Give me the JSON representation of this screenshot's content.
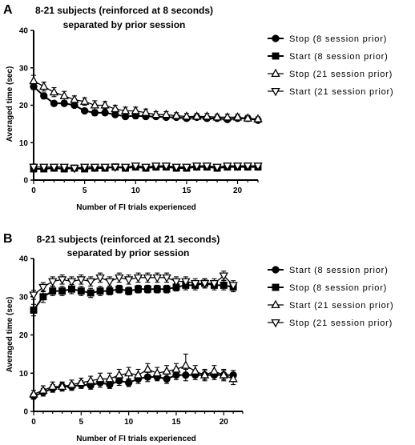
{
  "chart_data": [
    {
      "panel": "A",
      "type": "line",
      "title_lines": [
        "8-21 subjects (reinforced at 8 seconds)",
        "separated by prior session"
      ],
      "xlabel": "Number of FI trials experienced",
      "ylabel": "Averaged time (sec)",
      "xlim": [
        0,
        22
      ],
      "ylim": [
        0,
        40
      ],
      "xticks": [
        0,
        5,
        10,
        15,
        20
      ],
      "yticks": [
        0,
        10,
        20,
        30,
        40
      ],
      "grid": false,
      "legend_position": "right",
      "x": [
        0,
        1,
        2,
        3,
        4,
        5,
        6,
        7,
        8,
        9,
        10,
        11,
        12,
        13,
        14,
        15,
        16,
        17,
        18,
        19,
        20,
        21,
        22
      ],
      "series": [
        {
          "name": "Stop (8 session prior)",
          "marker": "circle",
          "filled": true,
          "values": [
            25,
            22.5,
            20.5,
            20.5,
            20,
            18.5,
            18,
            18,
            17.5,
            17,
            17.2,
            17,
            17,
            16.8,
            16.8,
            16.5,
            16.8,
            16.5,
            16.5,
            16.2,
            16.5,
            16.5,
            16
          ],
          "errors": [
            0.8,
            0.8,
            0.6,
            0.6,
            0.6,
            0.6,
            0.8,
            0.6,
            0.6,
            0.6,
            0.8,
            0.6,
            0.6,
            0.5,
            0.5,
            0.6,
            0.6,
            0.6,
            0.6,
            0.6,
            0.6,
            0.6,
            0.5
          ]
        },
        {
          "name": "Start (8 session prior)",
          "marker": "square",
          "filled": true,
          "values": [
            3,
            3,
            3.2,
            3,
            3.2,
            3,
            3.2,
            3.2,
            3.5,
            3.2,
            3.5,
            3.2,
            3.5,
            3.5,
            3.2,
            3.2,
            3.5,
            3.5,
            3.2,
            3.5,
            3.5,
            3.5,
            3.5
          ],
          "errors": [
            0.6,
            0.6,
            0.8,
            0.6,
            0.6,
            0.5,
            0.6,
            0.6,
            0.5,
            0.5,
            0.6,
            0.5,
            0.6,
            0.6,
            0.5,
            0.5,
            0.6,
            0.6,
            0.5,
            0.5,
            0.6,
            0.6,
            0.5
          ]
        },
        {
          "name": "Stop (21 session prior)",
          "marker": "triangle-up",
          "filled": false,
          "values": [
            26.5,
            25,
            23.5,
            22.5,
            21.5,
            21,
            20,
            20,
            19,
            18.5,
            18.5,
            18,
            17.5,
            17.5,
            17.2,
            17,
            17,
            17,
            16.8,
            16.8,
            16.8,
            16.5,
            16.3
          ],
          "errors": [
            1.5,
            1.2,
            1.2,
            1.2,
            1.0,
            1.0,
            1.2,
            1.0,
            1.0,
            1.0,
            1.0,
            1.0,
            0.8,
            0.8,
            0.8,
            0.8,
            0.8,
            0.8,
            0.8,
            0.8,
            0.8,
            0.8,
            0.6
          ]
        },
        {
          "name": "Start (21 session prior)",
          "marker": "triangle-down",
          "filled": false,
          "values": [
            3.5,
            3.5,
            3.5,
            3.5,
            3.2,
            3.5,
            3.5,
            3.5,
            3.5,
            3.5,
            3.8,
            3.5,
            3.8,
            3.8,
            3.5,
            3.5,
            3.8,
            3.8,
            3.5,
            3.8,
            3.8,
            3.8,
            3.8
          ],
          "errors": [
            0.8,
            0.6,
            0.6,
            0.6,
            0.6,
            0.5,
            0.6,
            0.6,
            0.5,
            0.5,
            0.6,
            0.5,
            0.6,
            0.6,
            0.5,
            0.5,
            0.6,
            0.6,
            0.5,
            0.5,
            0.6,
            0.6,
            0.5
          ]
        }
      ]
    },
    {
      "panel": "B",
      "type": "line",
      "title_lines": [
        "8-21 subjects (reinforced at 21 seconds)",
        "separated by prior session"
      ],
      "xlabel": "Number of FI trials experienced",
      "ylabel": "Averaged time (sec)",
      "xlim": [
        0,
        22
      ],
      "ylim": [
        0,
        40
      ],
      "xticks": [
        0,
        5,
        10,
        15,
        20
      ],
      "yticks": [
        0,
        10,
        20,
        30,
        40
      ],
      "grid": false,
      "legend_position": "right",
      "x": [
        0,
        1,
        2,
        3,
        4,
        5,
        6,
        7,
        8,
        9,
        10,
        11,
        12,
        13,
        14,
        15,
        16,
        17,
        18,
        19,
        20,
        21
      ],
      "series": [
        {
          "name": "Start (8 session prior)",
          "marker": "circle",
          "filled": true,
          "values": [
            4,
            5,
            6,
            6.5,
            6.5,
            7,
            6.8,
            7.5,
            7,
            8,
            7.5,
            8.5,
            9,
            9,
            8.5,
            9.5,
            9.5,
            9.5,
            9.5,
            9.5,
            9.5,
            9.5
          ],
          "errors": [
            0.8,
            1.0,
            1.0,
            1.0,
            1.0,
            1.0,
            1.0,
            1.2,
            1.0,
            1.2,
            1.0,
            1.2,
            1.2,
            1.0,
            1.2,
            1.2,
            1.5,
            1.2,
            1.2,
            1.2,
            1.2,
            1.2
          ]
        },
        {
          "name": "Stop (8 session prior)",
          "marker": "square",
          "filled": true,
          "values": [
            26.5,
            30,
            31.5,
            31.5,
            32,
            31.5,
            31,
            31.5,
            31.5,
            32,
            31.5,
            32,
            32,
            32,
            32,
            32.5,
            33,
            33,
            33.5,
            33,
            33,
            32.5
          ],
          "errors": [
            1.5,
            1.5,
            1.2,
            1.2,
            1.2,
            1.2,
            1.2,
            1.2,
            1.0,
            1.0,
            1.0,
            1.0,
            1.0,
            1.0,
            1.0,
            1.0,
            1.2,
            1.2,
            1.2,
            1.2,
            1.2,
            1.2
          ]
        },
        {
          "name": "Start (21 session prior)",
          "marker": "triangle-up",
          "filled": false,
          "values": [
            4.5,
            5.5,
            6.5,
            6.5,
            7,
            7.5,
            8,
            8.5,
            8.5,
            9.5,
            10,
            9.5,
            11,
            10,
            10.5,
            11,
            12,
            10.5,
            9.5,
            10.5,
            9.5,
            8.5
          ],
          "errors": [
            1.0,
            1.2,
            1.2,
            1.2,
            1.2,
            1.2,
            1.2,
            1.5,
            1.5,
            1.5,
            1.5,
            1.5,
            1.5,
            1.5,
            1.5,
            1.5,
            3.0,
            1.5,
            1.5,
            1.5,
            1.5,
            1.5
          ]
        },
        {
          "name": "Stop (21 session prior)",
          "marker": "triangle-down",
          "filled": false,
          "values": [
            30.5,
            32.5,
            34,
            34.5,
            34,
            34.5,
            34,
            35,
            34,
            35,
            34.5,
            35,
            35,
            35,
            35,
            34,
            34,
            33.5,
            33.5,
            33.5,
            35.5,
            33
          ],
          "errors": [
            1.2,
            1.2,
            1.2,
            1.2,
            1.2,
            1.2,
            1.2,
            1.2,
            1.2,
            1.2,
            1.2,
            1.2,
            1.2,
            1.2,
            1.2,
            1.2,
            1.2,
            1.2,
            1.2,
            1.2,
            1.2,
            1.2
          ]
        }
      ]
    }
  ]
}
